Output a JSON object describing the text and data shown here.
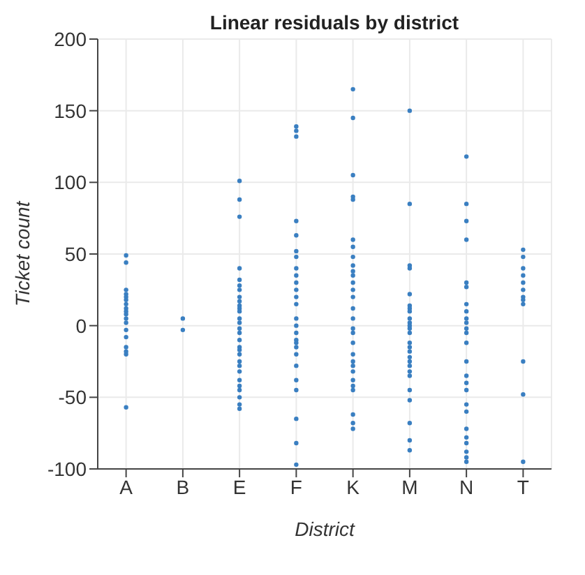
{
  "chart_data": {
    "type": "scatter",
    "title": "Linear residuals by district",
    "xlabel": "District",
    "ylabel": "Ticket count",
    "categories": [
      "A",
      "B",
      "E",
      "F",
      "K",
      "M",
      "N",
      "T"
    ],
    "ylim": [
      -100,
      200
    ],
    "yticks": [
      -100,
      -50,
      0,
      50,
      100,
      150,
      200
    ],
    "grid": true,
    "marker": "circle",
    "series": [
      {
        "color": "#3a7fc1",
        "x": [
          "A",
          "A",
          "A",
          "A",
          "A",
          "A",
          "A",
          "A",
          "A",
          "A",
          "A",
          "A",
          "A",
          "A",
          "A",
          "A",
          "A",
          "A",
          "B",
          "B",
          "E",
          "E",
          "E",
          "E",
          "E",
          "E",
          "E",
          "E",
          "E",
          "E",
          "E",
          "E",
          "E",
          "E",
          "E",
          "E",
          "E",
          "E",
          "E",
          "E",
          "E",
          "E",
          "E",
          "E",
          "E",
          "E",
          "E",
          "E",
          "E",
          "F",
          "F",
          "F",
          "F",
          "F",
          "F",
          "F",
          "F",
          "F",
          "F",
          "F",
          "F",
          "F",
          "F",
          "F",
          "F",
          "F",
          "F",
          "F",
          "F",
          "F",
          "F",
          "F",
          "F",
          "F",
          "F",
          "K",
          "K",
          "K",
          "K",
          "K",
          "K",
          "K",
          "K",
          "K",
          "K",
          "K",
          "K",
          "K",
          "K",
          "K",
          "K",
          "K",
          "K",
          "K",
          "K",
          "K",
          "K",
          "K",
          "K",
          "K",
          "K",
          "K",
          "K",
          "K",
          "M",
          "M",
          "M",
          "M",
          "M",
          "M",
          "M",
          "M",
          "M",
          "M",
          "M",
          "M",
          "M",
          "M",
          "M",
          "M",
          "M",
          "M",
          "M",
          "M",
          "M",
          "M",
          "M",
          "M",
          "M",
          "M",
          "N",
          "N",
          "N",
          "N",
          "N",
          "N",
          "N",
          "N",
          "N",
          "N",
          "N",
          "N",
          "N",
          "N",
          "N",
          "N",
          "N",
          "N",
          "N",
          "N",
          "N",
          "N",
          "N",
          "N",
          "N",
          "T",
          "T",
          "T",
          "T",
          "T",
          "T",
          "T",
          "T",
          "T",
          "T",
          "T",
          "T"
        ],
        "values": [
          49,
          44,
          25,
          22,
          20,
          18,
          15,
          12,
          10,
          8,
          5,
          2,
          -3,
          -8,
          -15,
          -18,
          -20,
          -57,
          5,
          -3,
          101,
          88,
          76,
          40,
          32,
          28,
          25,
          20,
          17,
          14,
          12,
          10,
          5,
          2,
          -2,
          -5,
          -10,
          -15,
          -17,
          -20,
          -25,
          -28,
          -32,
          -38,
          -42,
          -45,
          -50,
          -55,
          -58,
          139,
          136,
          132,
          73,
          63,
          52,
          48,
          40,
          35,
          30,
          25,
          20,
          15,
          5,
          0,
          -5,
          -10,
          -12,
          -15,
          -20,
          -28,
          -38,
          -45,
          -65,
          -82,
          -97,
          165,
          145,
          105,
          90,
          88,
          60,
          55,
          48,
          42,
          38,
          35,
          30,
          25,
          20,
          12,
          5,
          -2,
          -5,
          -12,
          -20,
          -25,
          -28,
          -32,
          -38,
          -42,
          -45,
          -62,
          -68,
          -72,
          150,
          85,
          42,
          40,
          22,
          14,
          12,
          10,
          5,
          2,
          0,
          -2,
          -5,
          -12,
          -15,
          -18,
          -22,
          -25,
          -28,
          -32,
          -35,
          -45,
          -52,
          -68,
          -80,
          -87,
          118,
          85,
          73,
          60,
          30,
          27,
          15,
          10,
          5,
          2,
          -2,
          -5,
          -12,
          -25,
          -35,
          -40,
          -45,
          -55,
          -60,
          -72,
          -78,
          -82,
          -88,
          -92,
          -95,
          53,
          48,
          40,
          35,
          30,
          25,
          20,
          18,
          15,
          -25,
          -48,
          -95
        ]
      }
    ]
  }
}
